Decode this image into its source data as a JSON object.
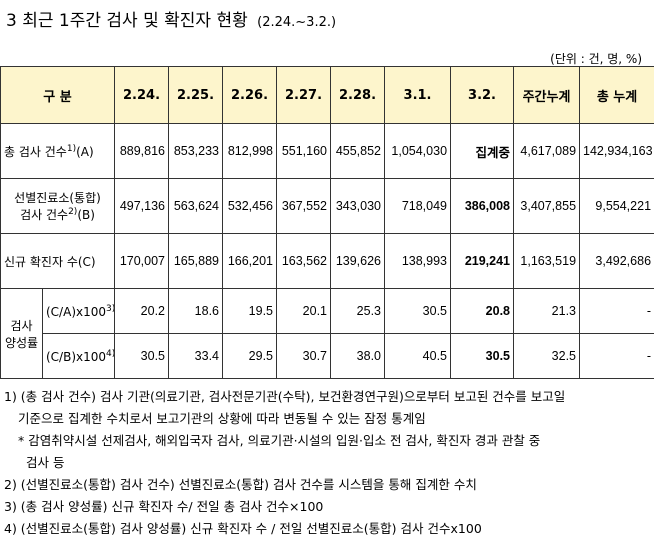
{
  "title": "3  최근 1주간 검사 및 확진자 현황",
  "title_range": "(2.24.~3.2.)",
  "unit": "(단위 : 건, 명, %)",
  "headers": [
    "구 분",
    "2.24.",
    "2.25.",
    "2.26.",
    "2.27.",
    "2.28.",
    "3.1.",
    "3.2.",
    "주간누계",
    "총 누계"
  ],
  "rows": {
    "total_tests": {
      "label": "총 검사 건수",
      "sup": "1)",
      "tail": "(A)",
      "values": [
        "889,816",
        "853,233",
        "812,998",
        "551,160",
        "455,852",
        "1,054,030",
        "집계중",
        "4,617,089",
        "142,934,163"
      ]
    },
    "clinic_tests": {
      "label_line1": "선별진료소(통합)",
      "label_line2": "검사 건수",
      "sup": "2)",
      "tail": "(B)",
      "values": [
        "497,136",
        "563,624",
        "532,456",
        "367,552",
        "343,030",
        "718,049",
        "386,008",
        "3,407,855",
        "9,554,221"
      ]
    },
    "new_cases": {
      "label": "신규 확진자 수(C)",
      "values": [
        "170,007",
        "165,889",
        "166,201",
        "163,562",
        "139,626",
        "138,993",
        "219,241",
        "1,163,519",
        "3,492,686"
      ]
    },
    "positivity": {
      "group_label_line1": "검사",
      "group_label_line2": "양성률",
      "ca": {
        "label": "(C/A)x100",
        "sup": "3)",
        "values": [
          "20.2",
          "18.6",
          "19.5",
          "20.1",
          "25.3",
          "30.5",
          "20.8",
          "21.3",
          "-"
        ]
      },
      "cb": {
        "label": "(C/B)x100",
        "sup": "4)",
        "values": [
          "30.5",
          "33.4",
          "29.5",
          "30.7",
          "38.0",
          "40.5",
          "30.5",
          "32.5",
          "-"
        ]
      }
    }
  },
  "notes": [
    "1) (총 검사 건수) 검사 기관(의료기관, 검사전문기관(수탁), 보건환경연구원)으로부터 보고된 건수를 보고일",
    "기준으로 집계한 수치로서 보고기관의 상황에 따라 변동될 수 있는 잠정 통계임",
    "* 감염취약시설 선제검사, 해외입국자 검사, 의료기관·시설의 입원·입소 전 검사, 확진자 경과 관찰 중",
    "검사 등",
    "2) (선별진료소(통합) 검사 건수) 선별진료소(통합) 검사 건수를 시스템을 통해 집계한 수치",
    "3) (총 검사 양성률) 신규 확진자 수/ 전일 총 검사 건수×100",
    "4) (선별진료소(통합) 검사 양성률) 신규 확진자 수 / 전일 선별진료소(통합) 검사 건수x100"
  ]
}
